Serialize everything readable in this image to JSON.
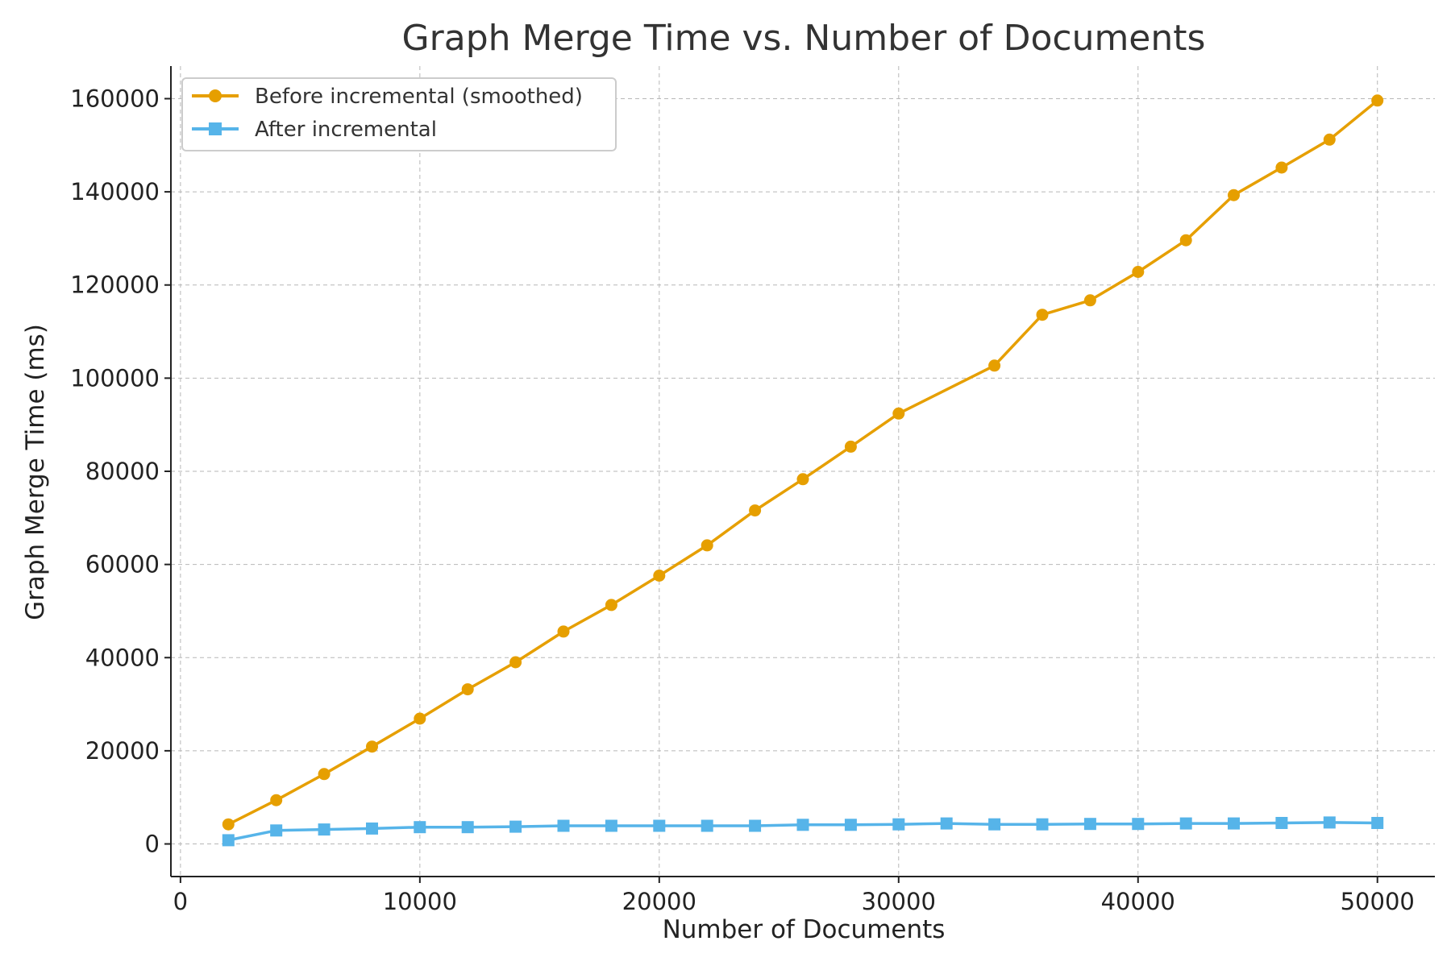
{
  "chart_data": {
    "type": "line",
    "title": "Graph Merge Time vs. Number of Documents",
    "xlabel": "Number of Documents",
    "ylabel": "Graph Merge Time (ms)",
    "xlim": [
      -400,
      52400
    ],
    "ylim": [
      -7000,
      167000
    ],
    "xticks": [
      0,
      10000,
      20000,
      30000,
      40000,
      50000
    ],
    "yticks": [
      0,
      20000,
      40000,
      60000,
      80000,
      100000,
      120000,
      140000,
      160000
    ],
    "grid": true,
    "legend_position": "top-left",
    "x": [
      2000,
      4000,
      6000,
      8000,
      10000,
      12000,
      14000,
      16000,
      18000,
      20000,
      22000,
      24000,
      26000,
      28000,
      30000,
      32000,
      34000,
      36000,
      38000,
      40000,
      42000,
      44000,
      46000,
      48000,
      50000
    ],
    "series": [
      {
        "name": "Before incremental (smoothed)",
        "color": "#E69F00",
        "marker": "circle",
        "values": [
          4200,
          9400,
          15000,
          20900,
          26900,
          null,
          39000,
          45600,
          51300,
          57600,
          64100,
          71600,
          78300,
          85300,
          92400,
          null,
          102700,
          113600,
          116700,
          122800,
          129600,
          139300,
          145200,
          151200,
          159600
        ]
      },
      {
        "name": "After incremental",
        "color": "#56B4E9",
        "marker": "square",
        "values": [
          800,
          2900,
          3100,
          3300,
          3600,
          3600,
          3700,
          3900,
          3900,
          3900,
          3900,
          3900,
          4100,
          4100,
          4200,
          4400,
          4200,
          4200,
          4300,
          4300,
          4400,
          4400,
          4500,
          4600,
          4500
        ]
      }
    ],
    "before_extra_points": [
      {
        "x": 12000,
        "y": 33200
      }
    ]
  }
}
